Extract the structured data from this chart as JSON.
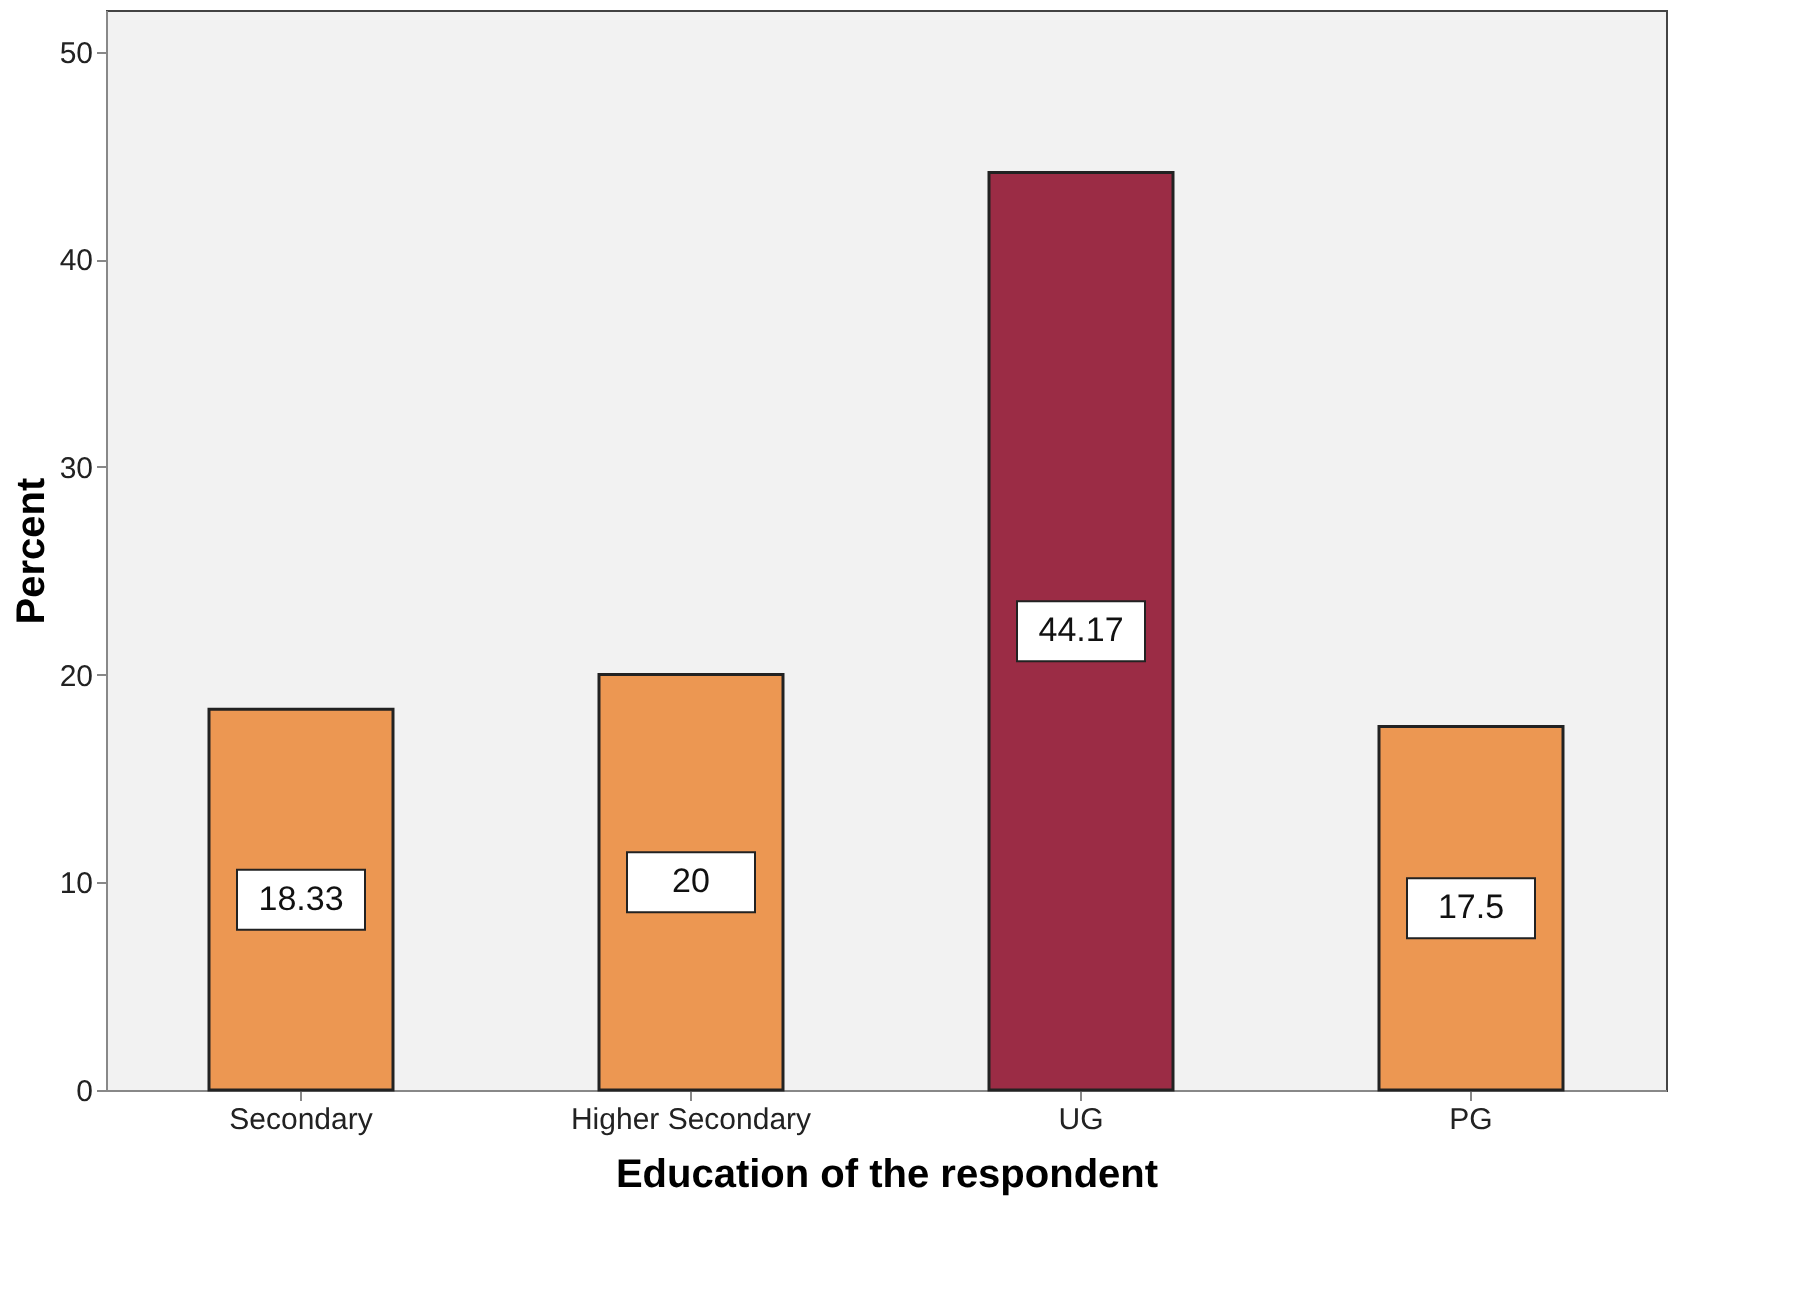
{
  "chart_data": {
    "type": "bar",
    "xlabel": "Education of the respondent",
    "ylabel": "Percent",
    "categories": [
      "Secondary",
      "Higher Secondary",
      "UG",
      "PG"
    ],
    "values": [
      18.33,
      20,
      44.17,
      17.5
    ],
    "colors": [
      "#ec9752",
      "#ec9752",
      "#9b2c45",
      "#ec9752"
    ],
    "ylim": [
      0,
      52
    ],
    "yticks": [
      0,
      10,
      20,
      30,
      40,
      50
    ],
    "data_labels": true,
    "grid": false,
    "legend": false
  }
}
